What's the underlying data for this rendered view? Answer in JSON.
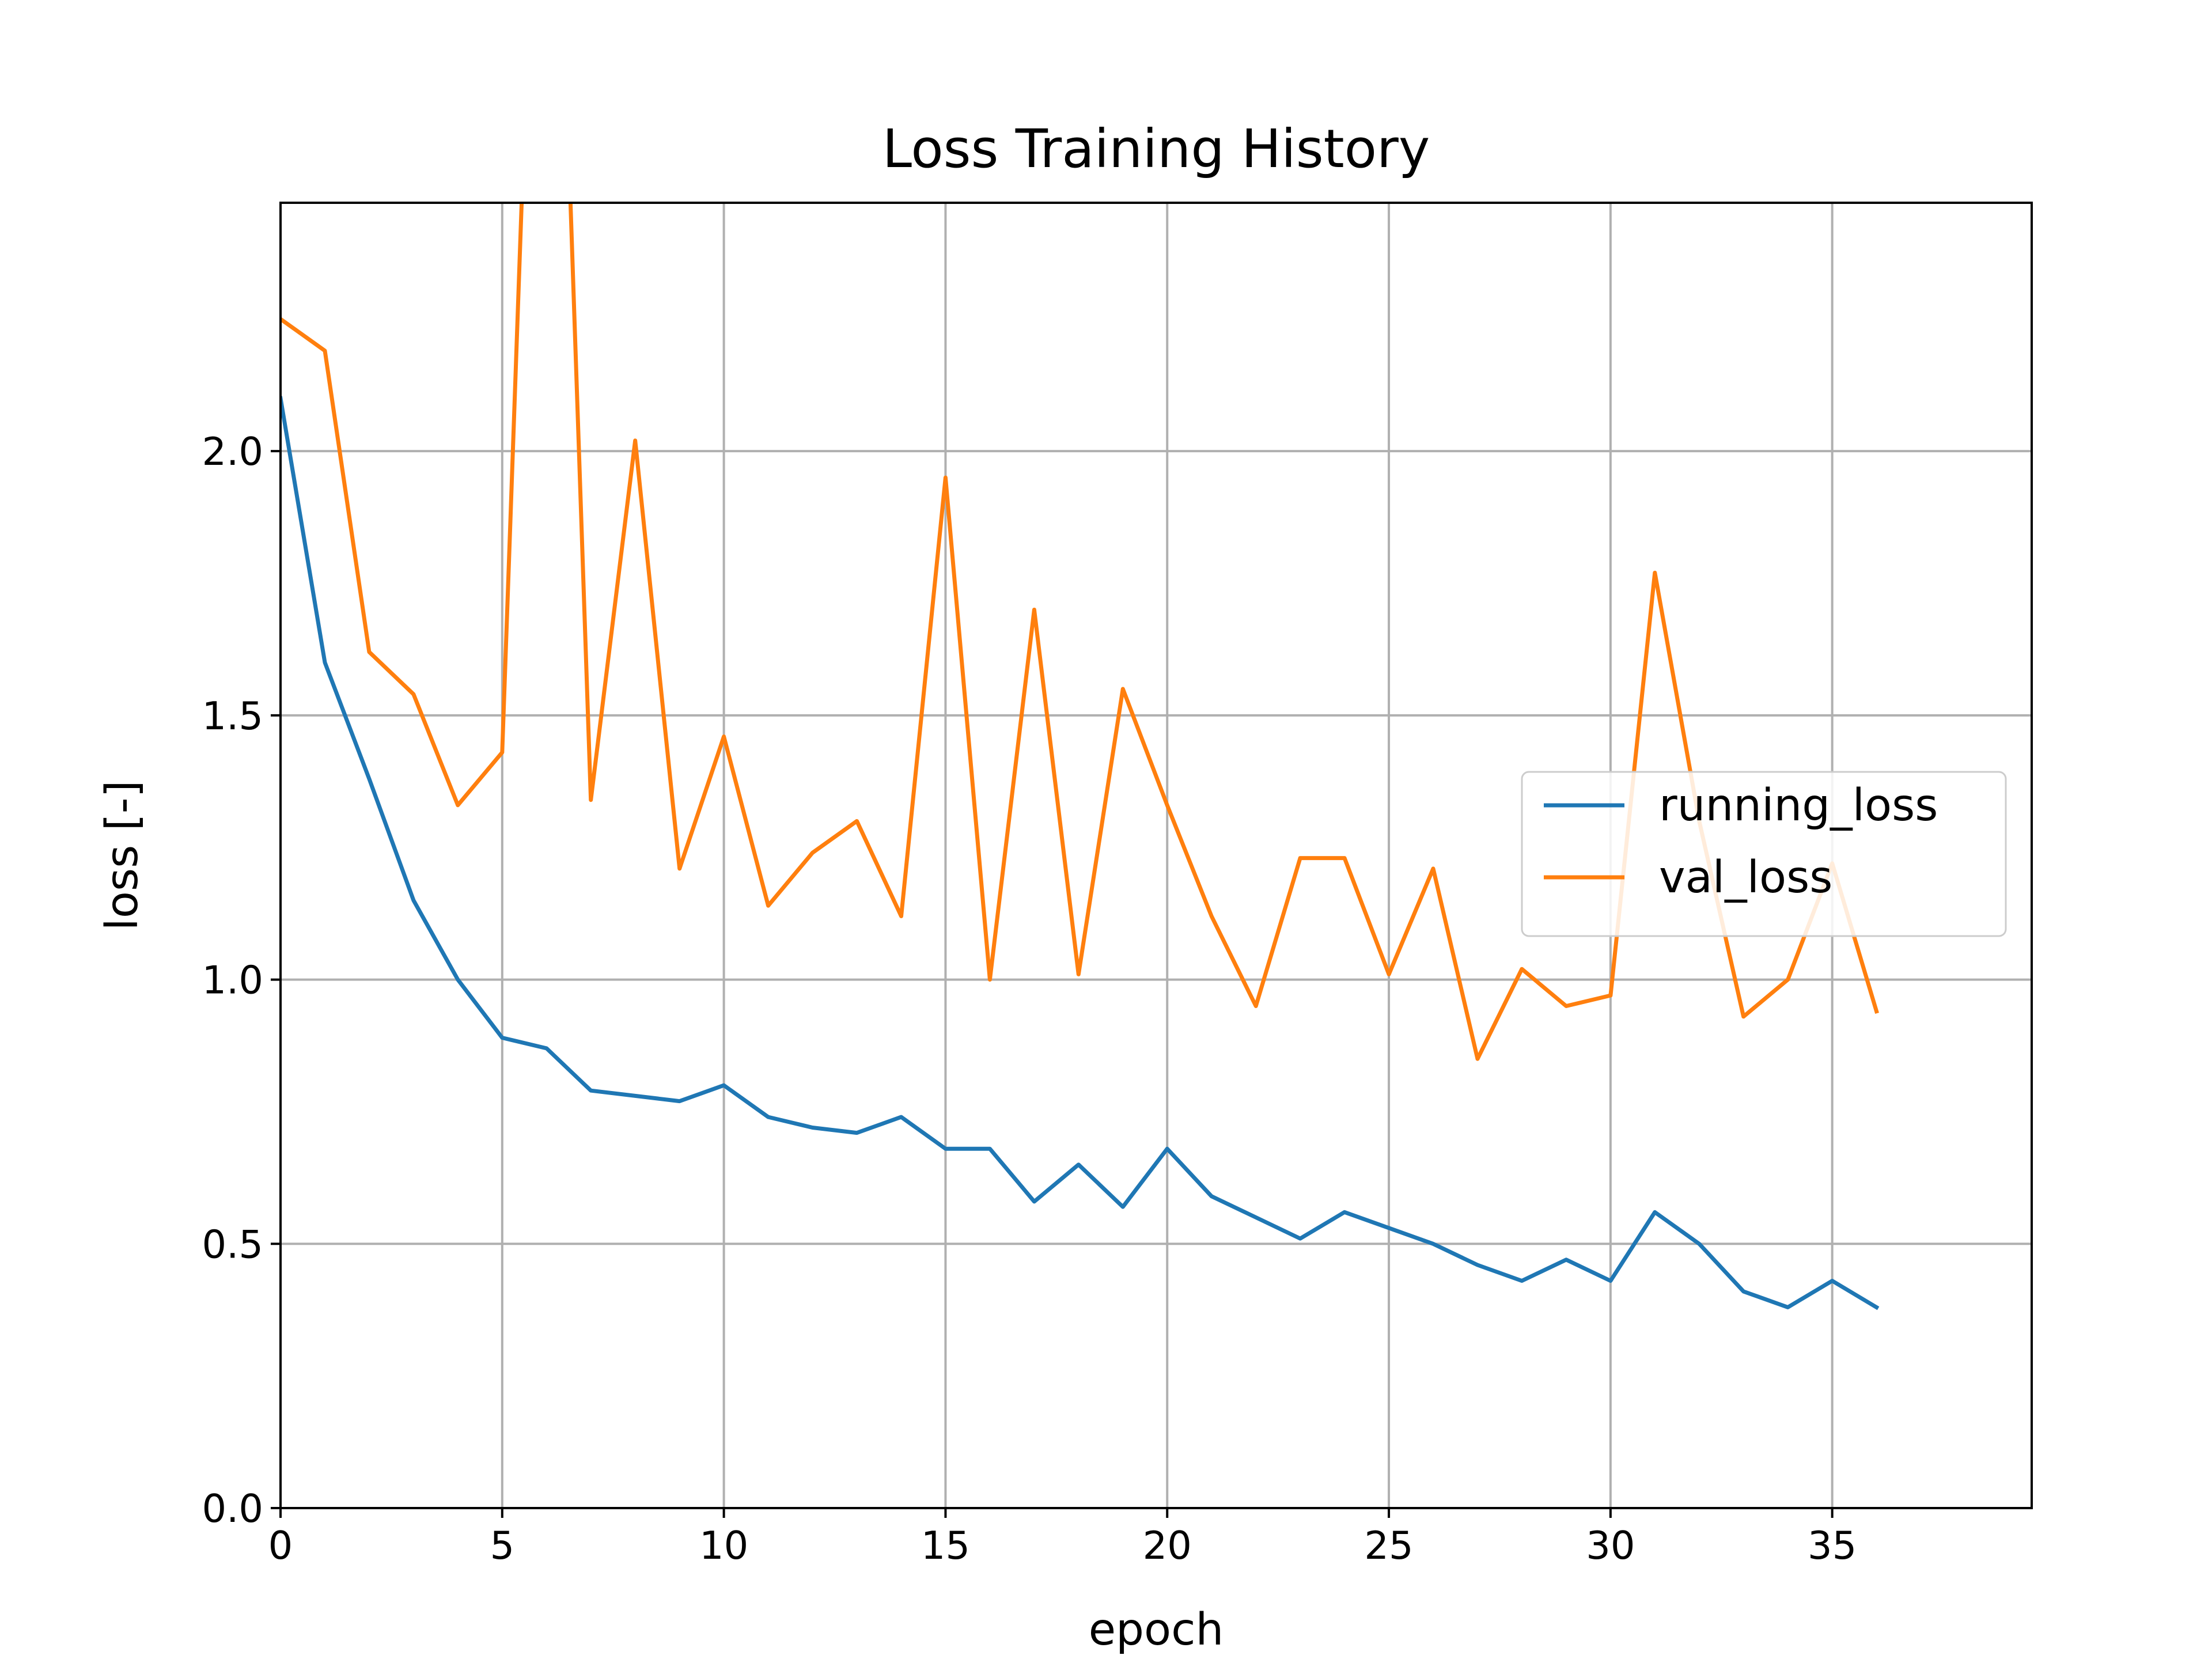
{
  "chart_data": {
    "type": "line",
    "title": "Loss Training History",
    "xlabel": "epoch",
    "ylabel": "loss [-]",
    "xlim": [
      0,
      39.5
    ],
    "ylim": [
      0,
      2.47
    ],
    "xticks": [
      0,
      5,
      10,
      15,
      20,
      25,
      30,
      35
    ],
    "xtick_labels": [
      "0",
      "5",
      "10",
      "15",
      "20",
      "25",
      "30",
      "35"
    ],
    "yticks": [
      0.0,
      0.5,
      1.0,
      1.5,
      2.0
    ],
    "ytick_labels": [
      "0.0",
      "0.5",
      "1.0",
      "1.5",
      "2.0"
    ],
    "grid": true,
    "legend_position": "center-right",
    "x": [
      0,
      1,
      2,
      3,
      4,
      5,
      6,
      7,
      8,
      9,
      10,
      11,
      12,
      13,
      14,
      15,
      16,
      17,
      18,
      19,
      20,
      21,
      22,
      23,
      24,
      25,
      26,
      27,
      28,
      29,
      30,
      31,
      32,
      33,
      34,
      35,
      36
    ],
    "series": [
      {
        "name": "running_loss",
        "color": "#1f77b4",
        "values": [
          2.1,
          1.6,
          1.38,
          1.15,
          1.0,
          0.89,
          0.87,
          0.79,
          0.78,
          0.77,
          0.8,
          0.74,
          0.72,
          0.71,
          0.74,
          0.68,
          0.68,
          0.58,
          0.65,
          0.57,
          0.68,
          0.59,
          0.55,
          0.51,
          0.56,
          0.53,
          0.5,
          0.46,
          0.43,
          0.47,
          0.43,
          0.56,
          0.5,
          0.41,
          0.38,
          0.43,
          0.38
        ]
      },
      {
        "name": "val_loss",
        "color": "#ff7f0e",
        "values": [
          2.25,
          2.19,
          1.62,
          1.54,
          1.33,
          1.43,
          3.8,
          1.34,
          2.02,
          1.21,
          1.46,
          1.14,
          1.24,
          1.3,
          1.12,
          1.95,
          1.0,
          1.7,
          1.01,
          1.55,
          1.33,
          1.12,
          0.95,
          1.23,
          1.23,
          1.01,
          1.21,
          0.85,
          1.02,
          0.95,
          0.97,
          1.77,
          1.3,
          0.93,
          1.0,
          1.22,
          0.94
        ]
      }
    ]
  }
}
